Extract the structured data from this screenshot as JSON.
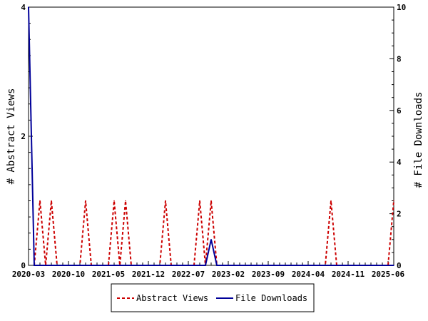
{
  "chart_data": {
    "type": "line",
    "title": "",
    "left_axis": {
      "label": "# Abstract Views",
      "ylim": [
        0,
        4
      ],
      "ticks": [
        0,
        2,
        4
      ]
    },
    "right_axis": {
      "label": "# File Downloads",
      "ylim": [
        0,
        10
      ],
      "ticks": [
        0,
        2,
        4,
        6,
        8,
        10
      ]
    },
    "x_ticks": [
      "2020-03",
      "2020-10",
      "2021-05",
      "2021-12",
      "2022-07",
      "2023-02",
      "2023-09",
      "2024-04",
      "2024-11",
      "2025-06"
    ],
    "x_tick_months": [
      0,
      7,
      14,
      21,
      28,
      35,
      42,
      49,
      56,
      63
    ],
    "x_range_months": [
      0,
      64
    ],
    "grid": false,
    "legend_position": "bottom-center",
    "series": [
      {
        "name": "Abstract Views",
        "axis": "left",
        "color": "#cc0000",
        "dash": "dashed",
        "points": [
          {
            "month": 1,
            "value": 0
          },
          {
            "month": 2,
            "value": 1
          },
          {
            "month": 3,
            "value": 0
          },
          {
            "month": 4,
            "value": 1
          },
          {
            "month": 5,
            "value": 0
          },
          {
            "month": 9,
            "value": 0
          },
          {
            "month": 10,
            "value": 1
          },
          {
            "month": 11,
            "value": 0
          },
          {
            "month": 14,
            "value": 0
          },
          {
            "month": 15,
            "value": 1
          },
          {
            "month": 16,
            "value": 0
          },
          {
            "month": 17,
            "value": 1
          },
          {
            "month": 18,
            "value": 0
          },
          {
            "month": 23,
            "value": 0
          },
          {
            "month": 24,
            "value": 1
          },
          {
            "month": 25,
            "value": 0
          },
          {
            "month": 29,
            "value": 0
          },
          {
            "month": 30,
            "value": 1
          },
          {
            "month": 31,
            "value": 0
          },
          {
            "month": 32,
            "value": 1
          },
          {
            "month": 33,
            "value": 0
          },
          {
            "month": 52,
            "value": 0
          },
          {
            "month": 53,
            "value": 1
          },
          {
            "month": 54,
            "value": 0
          },
          {
            "month": 63,
            "value": 0
          },
          {
            "month": 64,
            "value": 1
          }
        ]
      },
      {
        "name": "File Downloads",
        "axis": "right",
        "color": "#000099",
        "dash": "solid",
        "points": [
          {
            "month": 0,
            "value": 10
          },
          {
            "month": 1,
            "value": 0
          },
          {
            "month": 31,
            "value": 0
          },
          {
            "month": 32,
            "value": 1
          },
          {
            "month": 33,
            "value": 0
          },
          {
            "month": 64,
            "value": 0
          }
        ]
      }
    ]
  }
}
